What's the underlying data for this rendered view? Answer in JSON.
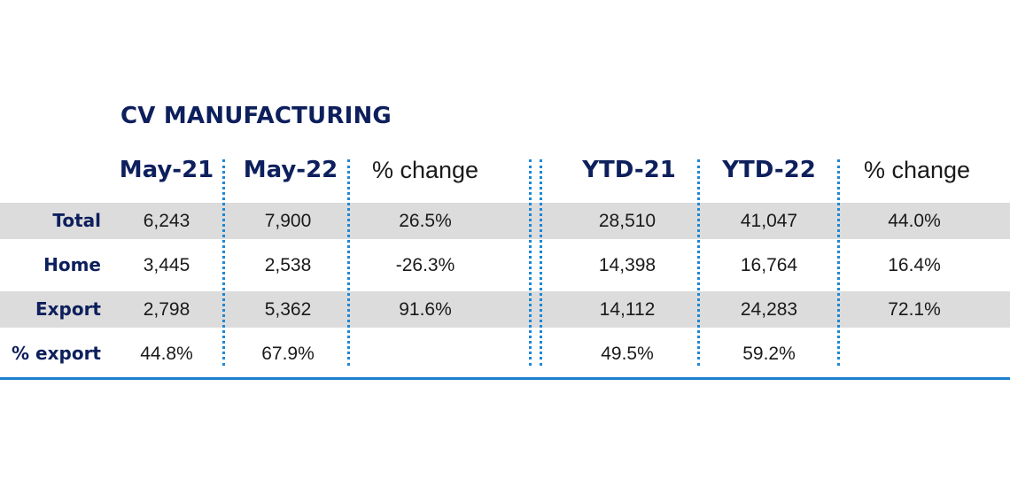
{
  "chart_data": {
    "type": "table",
    "title": "CV MANUFACTURING",
    "columns": [
      "May-21",
      "May-22",
      "% change",
      "YTD-21",
      "YTD-22",
      "% change"
    ],
    "rows": [
      {
        "label": "Total",
        "values": [
          "6,243",
          "7,900",
          "26.5%",
          "28,510",
          "41,047",
          "44.0%"
        ]
      },
      {
        "label": "Home",
        "values": [
          "3,445",
          "2,538",
          "-26.3%",
          "14,398",
          "16,764",
          "16.4%"
        ]
      },
      {
        "label": "Export",
        "values": [
          "2,798",
          "5,362",
          "91.6%",
          "14,112",
          "24,283",
          "72.1%"
        ]
      },
      {
        "label": "% export",
        "values": [
          "44.8%",
          "67.9%",
          "",
          "49.5%",
          "59.2%",
          ""
        ]
      }
    ],
    "banded_rows": [
      0,
      2
    ],
    "colors": {
      "title": "#0d1f5c",
      "band": "#dcdcdc",
      "separator": "#1d88d6",
      "baseline": "#1d7fd0"
    }
  }
}
